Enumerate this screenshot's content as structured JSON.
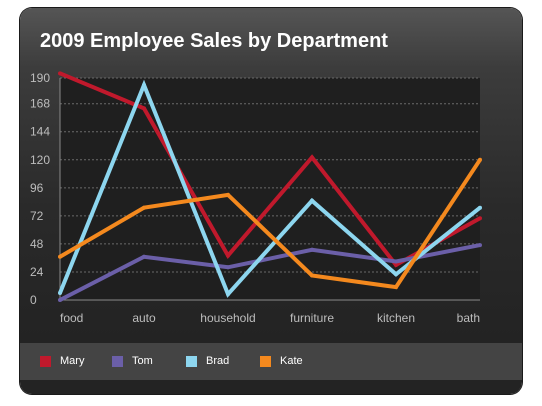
{
  "chart_data": {
    "type": "line",
    "title": "2009 Employee Sales by Department",
    "xlabel": "",
    "ylabel": "",
    "categories": [
      "food",
      "auto",
      "household",
      "furniture",
      "kitchen",
      "bath"
    ],
    "yticks": [
      0,
      24,
      48,
      72,
      96,
      120,
      144,
      168,
      190
    ],
    "ylim": [
      0,
      190
    ],
    "grid": true,
    "grid_style": "dashed horizontal",
    "legend_position": "bottom",
    "series": [
      {
        "name": "Mary",
        "color": "#c0192c",
        "values": [
          194,
          164,
          38,
          122,
          30,
          70
        ]
      },
      {
        "name": "Tom",
        "color": "#6b5fa8",
        "values": [
          0,
          37,
          28,
          43,
          33,
          47
        ]
      },
      {
        "name": "Brad",
        "color": "#8dd6ef",
        "values": [
          6,
          184,
          5,
          85,
          22,
          79
        ]
      },
      {
        "name": "Kate",
        "color": "#f4891e",
        "values": [
          37,
          79,
          90,
          21,
          11,
          120
        ]
      }
    ]
  }
}
